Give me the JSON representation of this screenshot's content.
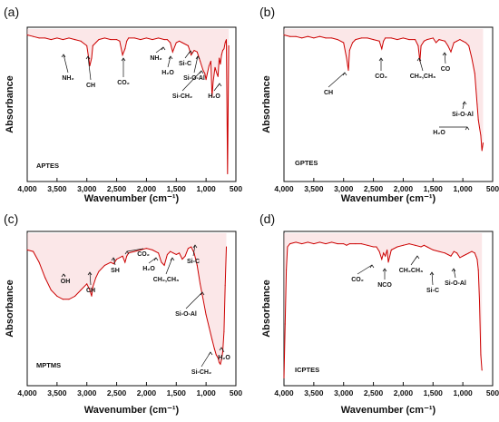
{
  "chart_data": [
    {
      "panel": "(a)",
      "label": "APTES",
      "type": "line",
      "xlabel": "Wavenumber (cm⁻¹)",
      "ylabel": "Absorbance",
      "xlim": [
        4000,
        500
      ],
      "x_reversed": true,
      "xticks": [
        "4,000",
        "3,500",
        "3,000",
        "2,500",
        "2,000",
        "1,500",
        "1,000",
        "500"
      ],
      "series": [
        {
          "color": "#cc0000",
          "x": [
            4000,
            3900,
            3800,
            3700,
            3600,
            3500,
            3400,
            3300,
            3200,
            3100,
            3000,
            2950,
            2920,
            2900,
            2850,
            2800,
            2700,
            2600,
            2500,
            2450,
            2400,
            2360,
            2330,
            2300,
            2200,
            2100,
            2000,
            1900,
            1800,
            1700,
            1650,
            1600,
            1560,
            1500,
            1450,
            1400,
            1300,
            1250,
            1200,
            1150,
            1100,
            1050,
            1020,
            1000,
            980,
            950,
            920,
            900,
            880,
            850,
            820,
            800,
            780,
            760,
            740,
            720,
            700,
            680,
            660,
            640,
            620
          ],
          "y": [
            0.95,
            0.94,
            0.93,
            0.93,
            0.92,
            0.93,
            0.92,
            0.93,
            0.92,
            0.91,
            0.88,
            0.75,
            0.8,
            0.88,
            0.9,
            0.92,
            0.93,
            0.92,
            0.92,
            0.91,
            0.82,
            0.86,
            0.91,
            0.93,
            0.93,
            0.92,
            0.93,
            0.92,
            0.93,
            0.92,
            0.92,
            0.9,
            0.84,
            0.9,
            0.91,
            0.9,
            0.88,
            0.82,
            0.85,
            0.84,
            0.78,
            0.72,
            0.7,
            0.66,
            0.7,
            0.75,
            0.78,
            0.55,
            0.65,
            0.74,
            0.7,
            0.68,
            0.8,
            0.76,
            0.82,
            0.85,
            0.86,
            0.9,
            0.92,
            0.05,
            0.88
          ]
        }
      ],
      "annotations": [
        "NH₂",
        "CH",
        "CO₂",
        "NH₂",
        "H₂O",
        "Si-C",
        "Si-O-Al",
        "Si-CH₂",
        "H₂O"
      ]
    },
    {
      "panel": "(b)",
      "label": "GPTES",
      "type": "line",
      "xlabel": "Wavenumber (cm⁻¹)",
      "ylabel": "Absorbance",
      "xlim": [
        4000,
        500
      ],
      "x_reversed": true,
      "xticks": [
        "4,000",
        "3,500",
        "3,000",
        "2,500",
        "2,000",
        "1,500",
        "1,000",
        "500"
      ],
      "series": [
        {
          "color": "#cc0000",
          "x": [
            4000,
            3900,
            3800,
            3700,
            3600,
            3500,
            3400,
            3300,
            3200,
            3100,
            3000,
            2950,
            2920,
            2900,
            2850,
            2800,
            2700,
            2600,
            2500,
            2400,
            2360,
            2330,
            2300,
            2200,
            2100,
            2000,
            1900,
            1800,
            1750,
            1720,
            1700,
            1650,
            1600,
            1500,
            1450,
            1400,
            1300,
            1250,
            1200,
            1150,
            1100,
            1050,
            1000,
            950,
            900,
            850,
            800,
            780,
            760,
            740,
            720,
            700,
            680,
            660
          ],
          "y": [
            0.95,
            0.94,
            0.94,
            0.93,
            0.94,
            0.93,
            0.94,
            0.93,
            0.93,
            0.92,
            0.9,
            0.8,
            0.72,
            0.85,
            0.9,
            0.92,
            0.93,
            0.93,
            0.92,
            0.91,
            0.86,
            0.91,
            0.93,
            0.93,
            0.92,
            0.93,
            0.92,
            0.92,
            0.88,
            0.78,
            0.88,
            0.91,
            0.92,
            0.93,
            0.9,
            0.92,
            0.91,
            0.88,
            0.84,
            0.9,
            0.91,
            0.92,
            0.91,
            0.9,
            0.88,
            0.8,
            0.7,
            0.6,
            0.5,
            0.4,
            0.35,
            0.3,
            0.2,
            0.25
          ]
        }
      ],
      "annotations": [
        "CH",
        "CO₂",
        "CH₂,CH₃",
        "CO",
        "Si-O-Al",
        "H₂O"
      ]
    },
    {
      "panel": "(c)",
      "label": "MPTMS",
      "type": "line",
      "xlabel": "Wavenumber (cm⁻¹)",
      "ylabel": "Absorbance",
      "xlim": [
        4000,
        500
      ],
      "x_reversed": true,
      "xticks": [
        "4,000",
        "3,500",
        "3,000",
        "2,500",
        "2,000",
        "1,500",
        "1,000",
        "500"
      ],
      "series": [
        {
          "color": "#cc0000",
          "x": [
            4000,
            3900,
            3800,
            3700,
            3600,
            3500,
            3400,
            3300,
            3200,
            3100,
            3000,
            2950,
            2920,
            2900,
            2850,
            2800,
            2700,
            2600,
            2550,
            2500,
            2400,
            2360,
            2330,
            2300,
            2200,
            2100,
            2000,
            1900,
            1800,
            1750,
            1700,
            1650,
            1600,
            1550,
            1500,
            1450,
            1400,
            1350,
            1300,
            1250,
            1200,
            1150,
            1100,
            1050,
            1000,
            950,
            900,
            860,
            830,
            800,
            780,
            760,
            740,
            720,
            700,
            680,
            660
          ],
          "y": [
            0.88,
            0.87,
            0.8,
            0.7,
            0.62,
            0.58,
            0.56,
            0.56,
            0.58,
            0.62,
            0.66,
            0.62,
            0.58,
            0.64,
            0.7,
            0.74,
            0.78,
            0.8,
            0.79,
            0.82,
            0.84,
            0.8,
            0.84,
            0.86,
            0.87,
            0.88,
            0.89,
            0.88,
            0.86,
            0.8,
            0.78,
            0.85,
            0.87,
            0.86,
            0.85,
            0.86,
            0.82,
            0.84,
            0.89,
            0.9,
            0.86,
            0.78,
            0.66,
            0.56,
            0.46,
            0.38,
            0.3,
            0.24,
            0.2,
            0.18,
            0.15,
            0.14,
            0.17,
            0.22,
            0.35,
            0.65,
            0.9
          ]
        }
      ],
      "annotations": [
        "OH",
        "CH",
        "SH",
        "CO₂",
        "H₂O",
        "CH₂,CH₃",
        "Si-C",
        "Si-O-Al",
        "Si-CH₂",
        "H₂O"
      ]
    },
    {
      "panel": "(d)",
      "label": "ICPTES",
      "type": "line",
      "xlabel": "Wavenumber (cm⁻¹)",
      "ylabel": "Absorbance",
      "xlim": [
        4000,
        500
      ],
      "x_reversed": true,
      "xticks": [
        "4,000",
        "3,500",
        "3,000",
        "2,500",
        "2,000",
        "1,500",
        "1,000",
        "500"
      ],
      "series": [
        {
          "color": "#cc0000",
          "x": [
            4000,
            3980,
            3960,
            3940,
            3900,
            3800,
            3700,
            3600,
            3500,
            3400,
            3300,
            3200,
            3100,
            3000,
            2950,
            2900,
            2800,
            2700,
            2600,
            2500,
            2450,
            2400,
            2360,
            2330,
            2300,
            2270,
            2250,
            2200,
            2100,
            2000,
            1900,
            1800,
            1700,
            1650,
            1600,
            1500,
            1400,
            1300,
            1250,
            1200,
            1150,
            1100,
            1050,
            1000,
            950,
            900,
            850,
            800,
            780,
            760,
            740,
            720,
            700,
            680
          ],
          "y": [
            0.05,
            0.4,
            0.75,
            0.9,
            0.92,
            0.93,
            0.92,
            0.93,
            0.92,
            0.93,
            0.92,
            0.93,
            0.92,
            0.92,
            0.91,
            0.92,
            0.92,
            0.92,
            0.91,
            0.9,
            0.9,
            0.87,
            0.82,
            0.86,
            0.84,
            0.88,
            0.8,
            0.88,
            0.9,
            0.91,
            0.92,
            0.91,
            0.9,
            0.91,
            0.9,
            0.88,
            0.87,
            0.86,
            0.85,
            0.84,
            0.87,
            0.86,
            0.83,
            0.84,
            0.85,
            0.86,
            0.87,
            0.86,
            0.84,
            0.82,
            0.75,
            0.55,
            0.2,
            0.1
          ]
        }
      ],
      "annotations": [
        "CO₂",
        "NCO",
        "CH₂CH₃",
        "Si-C",
        "Si-O-Al"
      ]
    }
  ]
}
